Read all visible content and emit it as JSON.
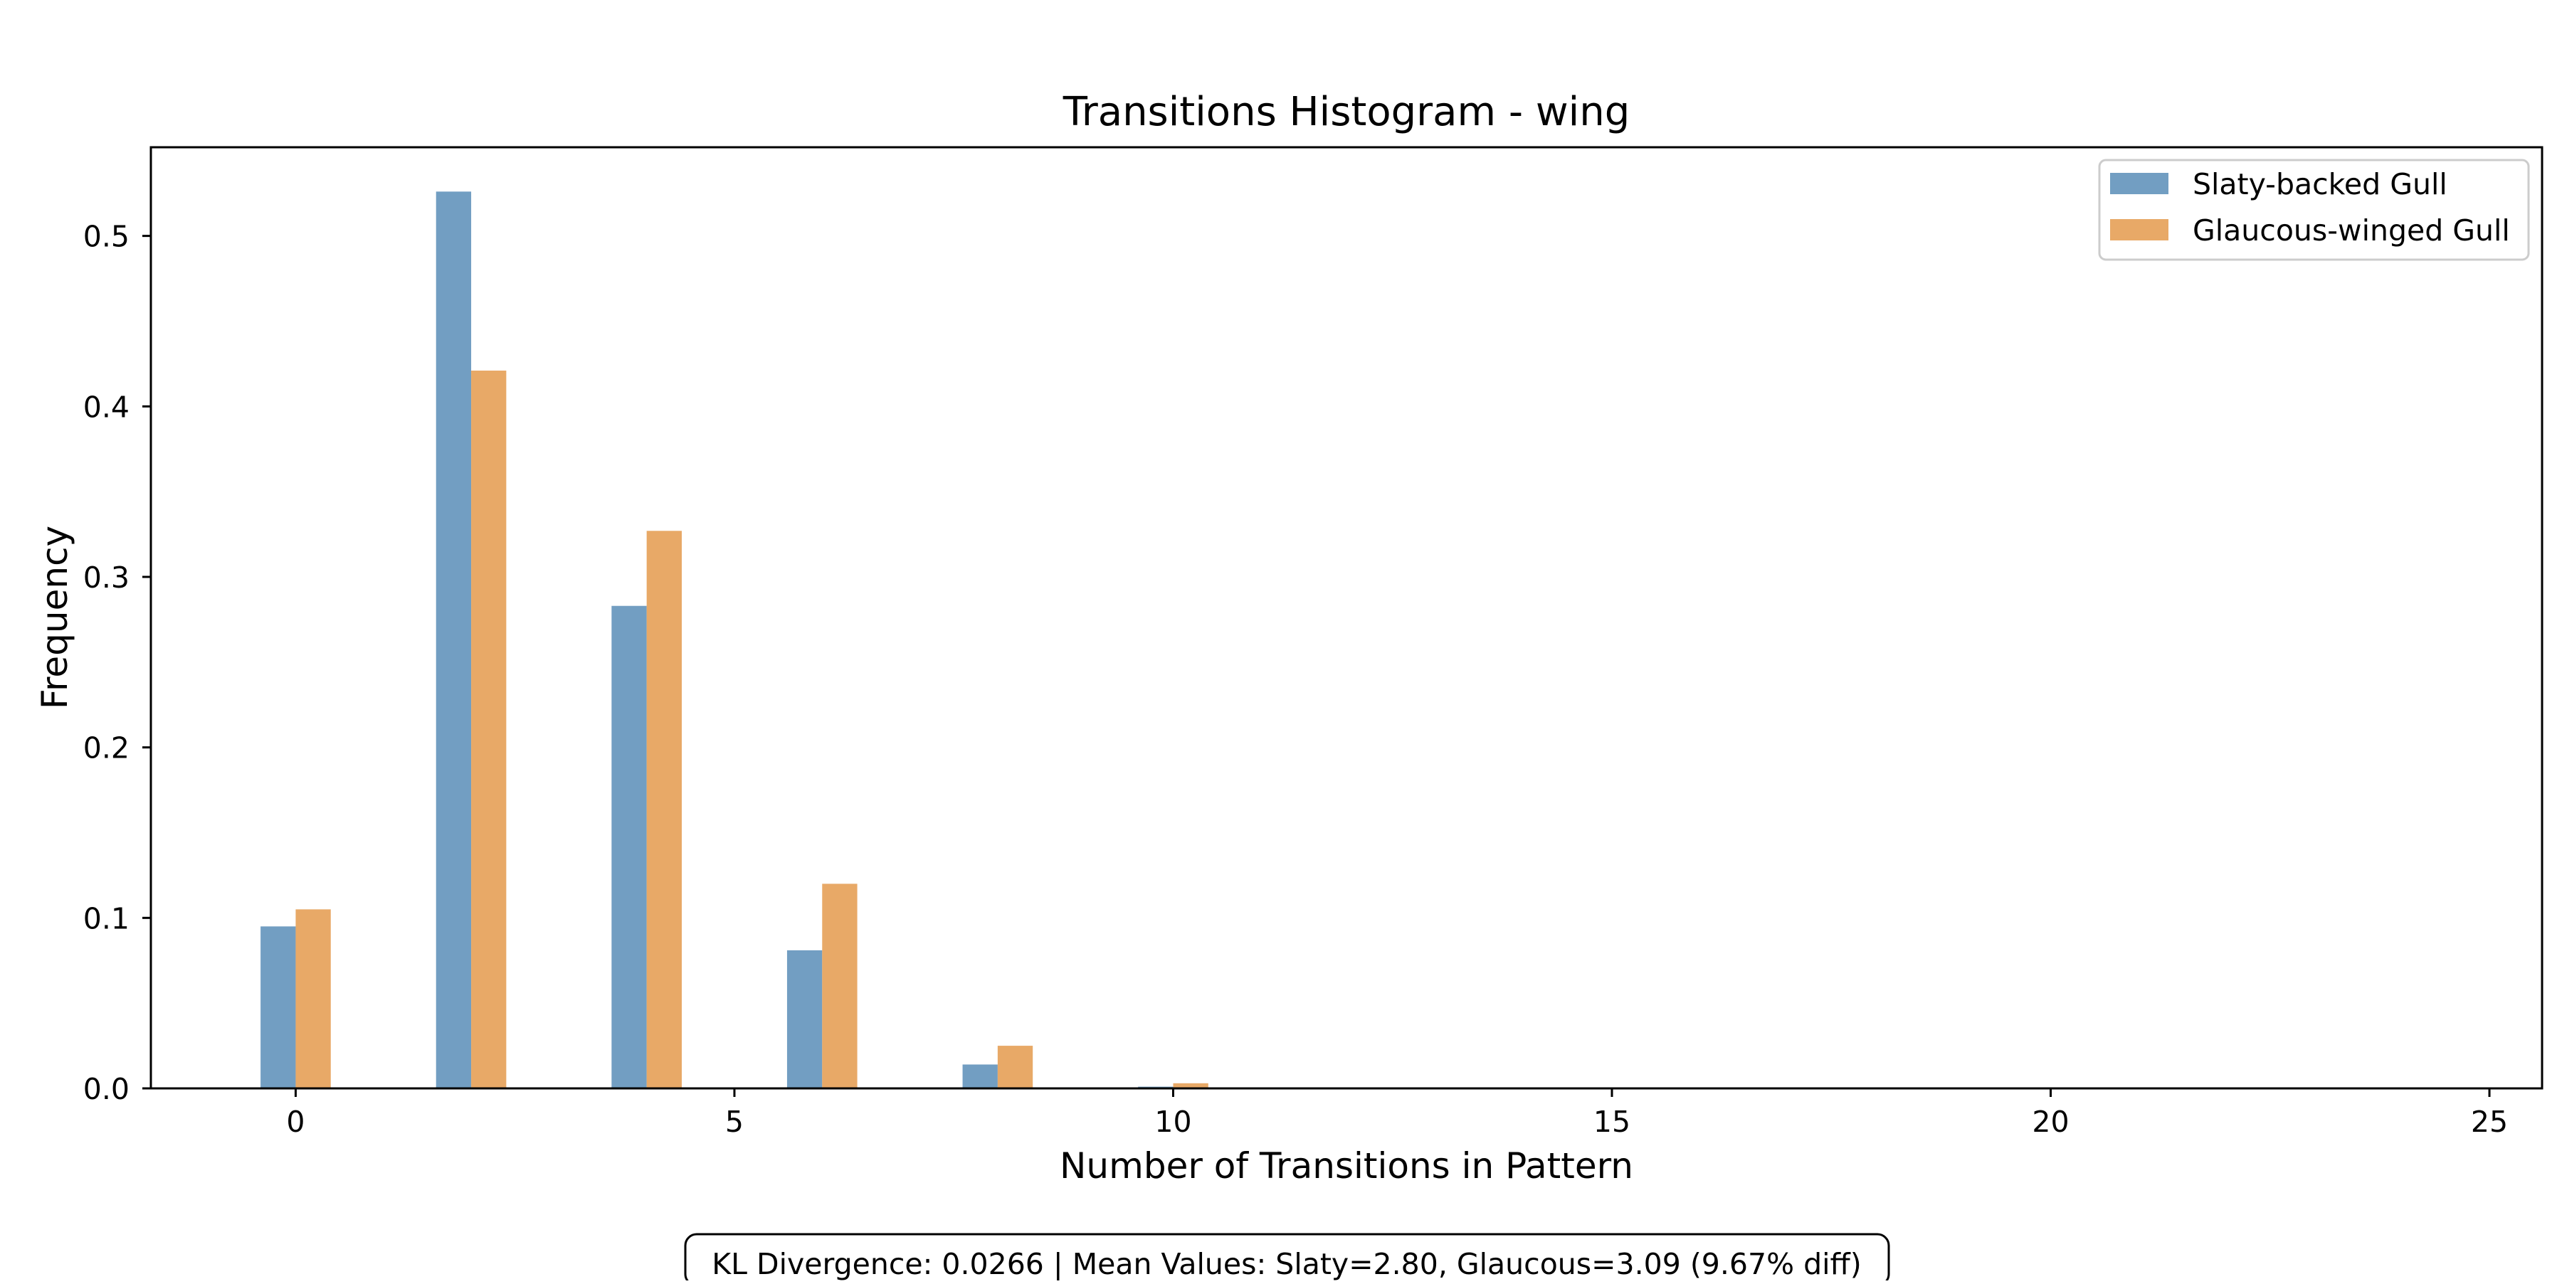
{
  "chart_data": {
    "type": "bar",
    "title": "Transitions Histogram - wing",
    "xlabel": "Number of Transitions in Pattern",
    "ylabel": "Frequency",
    "xlim": [
      -1.65,
      25.6
    ],
    "ylim": [
      0,
      0.552
    ],
    "xticks": [
      0,
      5,
      10,
      15,
      20,
      25
    ],
    "yticks": [
      0.0,
      0.1,
      0.2,
      0.3,
      0.4,
      0.5
    ],
    "ytick_labels": [
      "0.0",
      "0.1",
      "0.2",
      "0.3",
      "0.4",
      "0.5"
    ],
    "bar_width": 0.4,
    "legend_position": "top-right",
    "grid": false,
    "series": [
      {
        "name": "Slaty-backed Gull",
        "color": "#4f86b3",
        "x": [
          0,
          2,
          4,
          6,
          8,
          10
        ],
        "values": [
          0.095,
          0.526,
          0.283,
          0.081,
          0.014,
          0.001
        ]
      },
      {
        "name": "Glaucous-winged Gull",
        "color": "#e29341",
        "x": [
          0,
          2,
          4,
          6,
          8,
          10
        ],
        "values": [
          0.105,
          0.421,
          0.327,
          0.12,
          0.025,
          0.003
        ]
      }
    ],
    "annotation": "KL Divergence: 0.0266 | Mean Values: Slaty=2.80, Glaucous=3.09 (9.67% diff)"
  }
}
